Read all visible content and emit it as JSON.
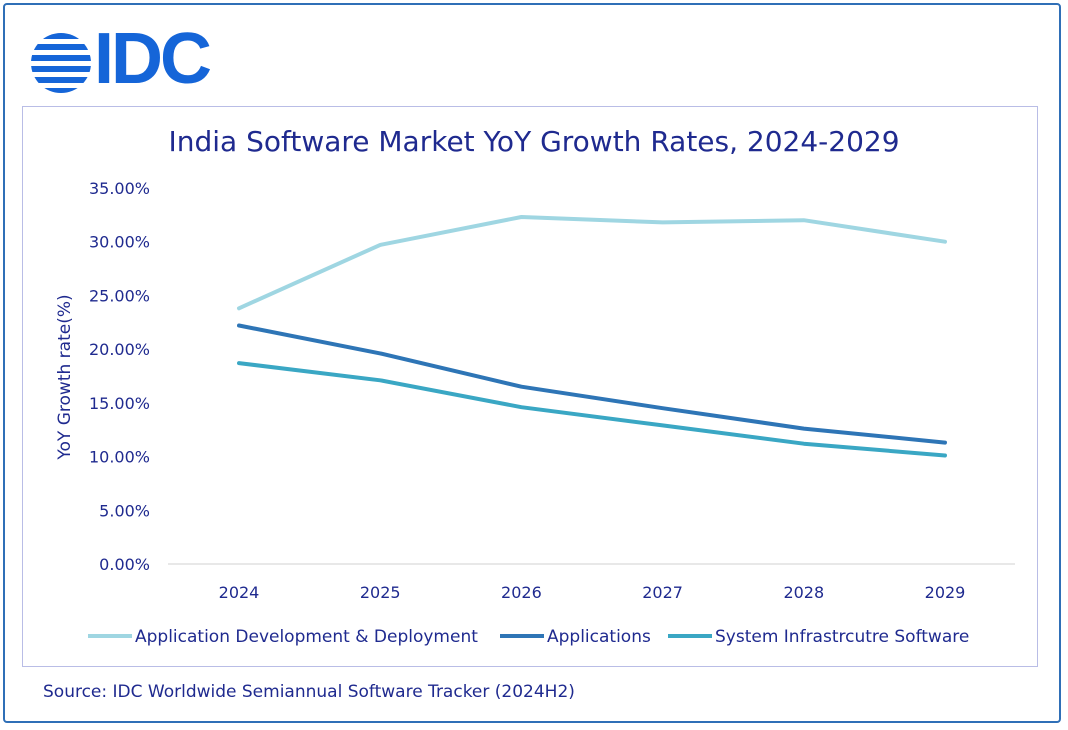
{
  "logo": {
    "text": "IDC",
    "color": "#1565d8"
  },
  "chart_data": {
    "type": "line",
    "title": "India Software Market YoY Growth Rates, 2024-2029",
    "xlabel": "",
    "ylabel": "YoY Growth rate(%)",
    "x": [
      "2024",
      "2025",
      "2026",
      "2027",
      "2028",
      "2029"
    ],
    "ylim": [
      0,
      35
    ],
    "yticks": [
      "0.00%",
      "5.00%",
      "10.00%",
      "15.00%",
      "20.00%",
      "25.00%",
      "30.00%",
      "35.00%"
    ],
    "ytick_values": [
      0,
      5,
      10,
      15,
      20,
      25,
      30,
      35
    ],
    "grid": false,
    "legend": "bottom",
    "series": [
      {
        "name": "Application Development & Deployment",
        "color": "#9fd6e2",
        "values": [
          23.8,
          29.7,
          32.3,
          31.8,
          32.0,
          30.0
        ]
      },
      {
        "name": "Applications",
        "color": "#2e75b6",
        "values": [
          22.2,
          19.6,
          16.5,
          14.5,
          12.6,
          11.3
        ]
      },
      {
        "name": "System Infrastrcutre Software",
        "color": "#3aa7c4",
        "values": [
          18.7,
          17.1,
          14.6,
          12.9,
          11.2,
          10.1
        ]
      }
    ]
  },
  "source": "Source: IDC Worldwide Semiannual Software Tracker (2024H2)"
}
